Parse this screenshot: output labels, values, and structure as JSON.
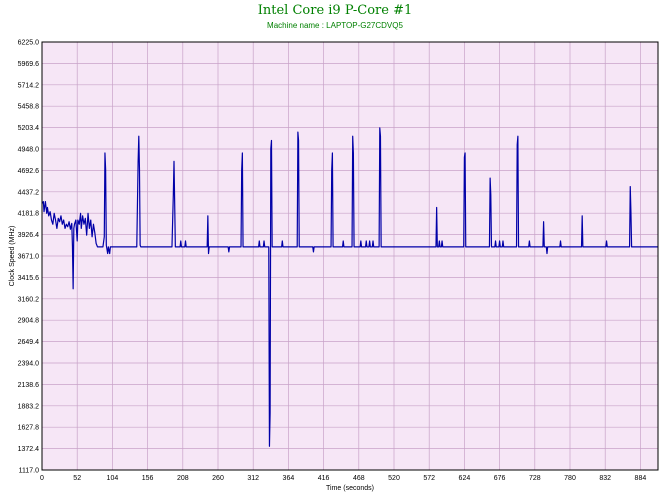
{
  "chart_data": {
    "type": "line",
    "title": "Intel Core i9 P-Core #1",
    "subtitle": "Machine name : LAPTOP-G27CDVQ5",
    "xlabel": "Time (seconds)",
    "ylabel": "Clock Speed (MHz)",
    "xlim": [
      0,
      910
    ],
    "ylim": [
      1117.0,
      6225.0
    ],
    "x_ticks": [
      "0",
      "52",
      "104",
      "156",
      "208",
      "260",
      "312",
      "364",
      "416",
      "468",
      "520",
      "572",
      "624",
      "676",
      "728",
      "780",
      "832",
      "884"
    ],
    "y_ticks": [
      "6225.0",
      "5969.6",
      "5714.2",
      "5458.8",
      "5203.4",
      "4948.0",
      "4692.6",
      "4437.2",
      "4181.8",
      "3926.4",
      "3671.0",
      "3415.6",
      "3160.2",
      "2904.8",
      "2649.4",
      "2394.0",
      "2138.6",
      "1883.2",
      "1627.8",
      "1372.4",
      "1117.0"
    ],
    "grid": true,
    "colors": {
      "line": "#0000a8",
      "plot_background": "#f6e6f6",
      "grid": "#c8a2c8",
      "title": "#008000"
    },
    "series": [
      {
        "baseline": 3780,
        "points": [
          [
            0,
            4300
          ],
          [
            2,
            4320
          ],
          [
            3,
            4200
          ],
          [
            5,
            4320
          ],
          [
            7,
            4180
          ],
          [
            8,
            4250
          ],
          [
            10,
            4150
          ],
          [
            12,
            4200
          ],
          [
            14,
            4100
          ],
          [
            16,
            4050
          ],
          [
            18,
            4180
          ],
          [
            20,
            4100
          ],
          [
            22,
            4000
          ],
          [
            24,
            4120
          ],
          [
            26,
            4080
          ],
          [
            28,
            4150
          ],
          [
            30,
            4050
          ],
          [
            32,
            4100
          ],
          [
            34,
            4000
          ],
          [
            36,
            4050
          ],
          [
            38,
            4020
          ],
          [
            40,
            4080
          ],
          [
            42,
            3990
          ],
          [
            44,
            4060
          ],
          [
            45,
            3780
          ],
          [
            46,
            3280
          ],
          [
            47,
            4000
          ],
          [
            48,
            4050
          ],
          [
            50,
            4100
          ],
          [
            52,
            3850
          ],
          [
            53,
            4100
          ],
          [
            55,
            4050
          ],
          [
            57,
            4180
          ],
          [
            58,
            4000
          ],
          [
            60,
            4150
          ],
          [
            62,
            4050
          ],
          [
            64,
            4120
          ],
          [
            66,
            3920
          ],
          [
            68,
            4180
          ],
          [
            70,
            4000
          ],
          [
            72,
            4100
          ],
          [
            74,
            3900
          ],
          [
            76,
            4050
          ],
          [
            78,
            3950
          ],
          [
            80,
            3820
          ],
          [
            82,
            3780
          ],
          [
            90,
            3780
          ],
          [
            92,
            3900
          ],
          [
            93,
            4900
          ],
          [
            94,
            4700
          ],
          [
            95,
            3800
          ],
          [
            97,
            3700
          ],
          [
            98,
            3780
          ],
          [
            100,
            3700
          ],
          [
            101,
            3780
          ],
          [
            140,
            3780
          ],
          [
            142,
            4800
          ],
          [
            143,
            5100
          ],
          [
            144,
            4700
          ],
          [
            145,
            3800
          ],
          [
            146,
            3780
          ],
          [
            192,
            3780
          ],
          [
            194,
            4400
          ],
          [
            195,
            4800
          ],
          [
            196,
            4300
          ],
          [
            197,
            3780
          ],
          [
            204,
            3780
          ],
          [
            205,
            3850
          ],
          [
            206,
            3780
          ],
          [
            211,
            3780
          ],
          [
            212,
            3850
          ],
          [
            213,
            3780
          ],
          [
            244,
            3780
          ],
          [
            245,
            4150
          ],
          [
            246,
            3700
          ],
          [
            247,
            3780
          ],
          [
            275,
            3780
          ],
          [
            276,
            3720
          ],
          [
            277,
            3780
          ],
          [
            294,
            3780
          ],
          [
            295,
            4700
          ],
          [
            296,
            4900
          ],
          [
            297,
            3780
          ],
          [
            320,
            3780
          ],
          [
            321,
            3850
          ],
          [
            322,
            3780
          ],
          [
            327,
            3780
          ],
          [
            328,
            3850
          ],
          [
            329,
            3780
          ],
          [
            335,
            3780
          ],
          [
            336,
            1400
          ],
          [
            337,
            1800
          ],
          [
            338,
            4950
          ],
          [
            339,
            5050
          ],
          [
            340,
            3780
          ],
          [
            354,
            3780
          ],
          [
            355,
            3850
          ],
          [
            356,
            3780
          ],
          [
            377,
            3780
          ],
          [
            378,
            5150
          ],
          [
            379,
            5050
          ],
          [
            380,
            3780
          ],
          [
            400,
            3780
          ],
          [
            401,
            3720
          ],
          [
            402,
            3780
          ],
          [
            427,
            3780
          ],
          [
            428,
            4700
          ],
          [
            429,
            4900
          ],
          [
            430,
            3780
          ],
          [
            444,
            3780
          ],
          [
            445,
            3850
          ],
          [
            446,
            3780
          ],
          [
            458,
            3780
          ],
          [
            459,
            5100
          ],
          [
            460,
            4900
          ],
          [
            461,
            3780
          ],
          [
            470,
            3780
          ],
          [
            471,
            3850
          ],
          [
            472,
            3780
          ],
          [
            478,
            3780
          ],
          [
            479,
            3850
          ],
          [
            480,
            3780
          ],
          [
            483,
            3780
          ],
          [
            484,
            3850
          ],
          [
            485,
            3780
          ],
          [
            488,
            3780
          ],
          [
            489,
            3850
          ],
          [
            490,
            3780
          ],
          [
            498,
            3780
          ],
          [
            499,
            5200
          ],
          [
            500,
            5100
          ],
          [
            501,
            3780
          ],
          [
            582,
            3780
          ],
          [
            583,
            4250
          ],
          [
            584,
            3780
          ],
          [
            586,
            3780
          ],
          [
            587,
            3850
          ],
          [
            588,
            3780
          ],
          [
            590,
            3780
          ],
          [
            591,
            3850
          ],
          [
            592,
            3780
          ],
          [
            623,
            3780
          ],
          [
            624,
            4850
          ],
          [
            625,
            4900
          ],
          [
            626,
            3780
          ],
          [
            661,
            3780
          ],
          [
            662,
            4600
          ],
          [
            663,
            4400
          ],
          [
            664,
            3780
          ],
          [
            669,
            3780
          ],
          [
            670,
            3850
          ],
          [
            671,
            3780
          ],
          [
            675,
            3780
          ],
          [
            676,
            3850
          ],
          [
            677,
            3780
          ],
          [
            680,
            3780
          ],
          [
            681,
            3850
          ],
          [
            682,
            3780
          ],
          [
            701,
            3780
          ],
          [
            702,
            5000
          ],
          [
            703,
            5100
          ],
          [
            704,
            3780
          ],
          [
            719,
            3780
          ],
          [
            720,
            3850
          ],
          [
            721,
            3780
          ],
          [
            740,
            3780
          ],
          [
            741,
            4080
          ],
          [
            742,
            3780
          ],
          [
            745,
            3780
          ],
          [
            746,
            3700
          ],
          [
            747,
            3780
          ],
          [
            765,
            3780
          ],
          [
            766,
            3850
          ],
          [
            767,
            3780
          ],
          [
            797,
            3780
          ],
          [
            798,
            4150
          ],
          [
            799,
            3780
          ],
          [
            833,
            3780
          ],
          [
            834,
            3850
          ],
          [
            835,
            3780
          ],
          [
            868,
            3780
          ],
          [
            869,
            4500
          ],
          [
            870,
            4200
          ],
          [
            871,
            3780
          ],
          [
            910,
            3780
          ]
        ]
      }
    ]
  }
}
